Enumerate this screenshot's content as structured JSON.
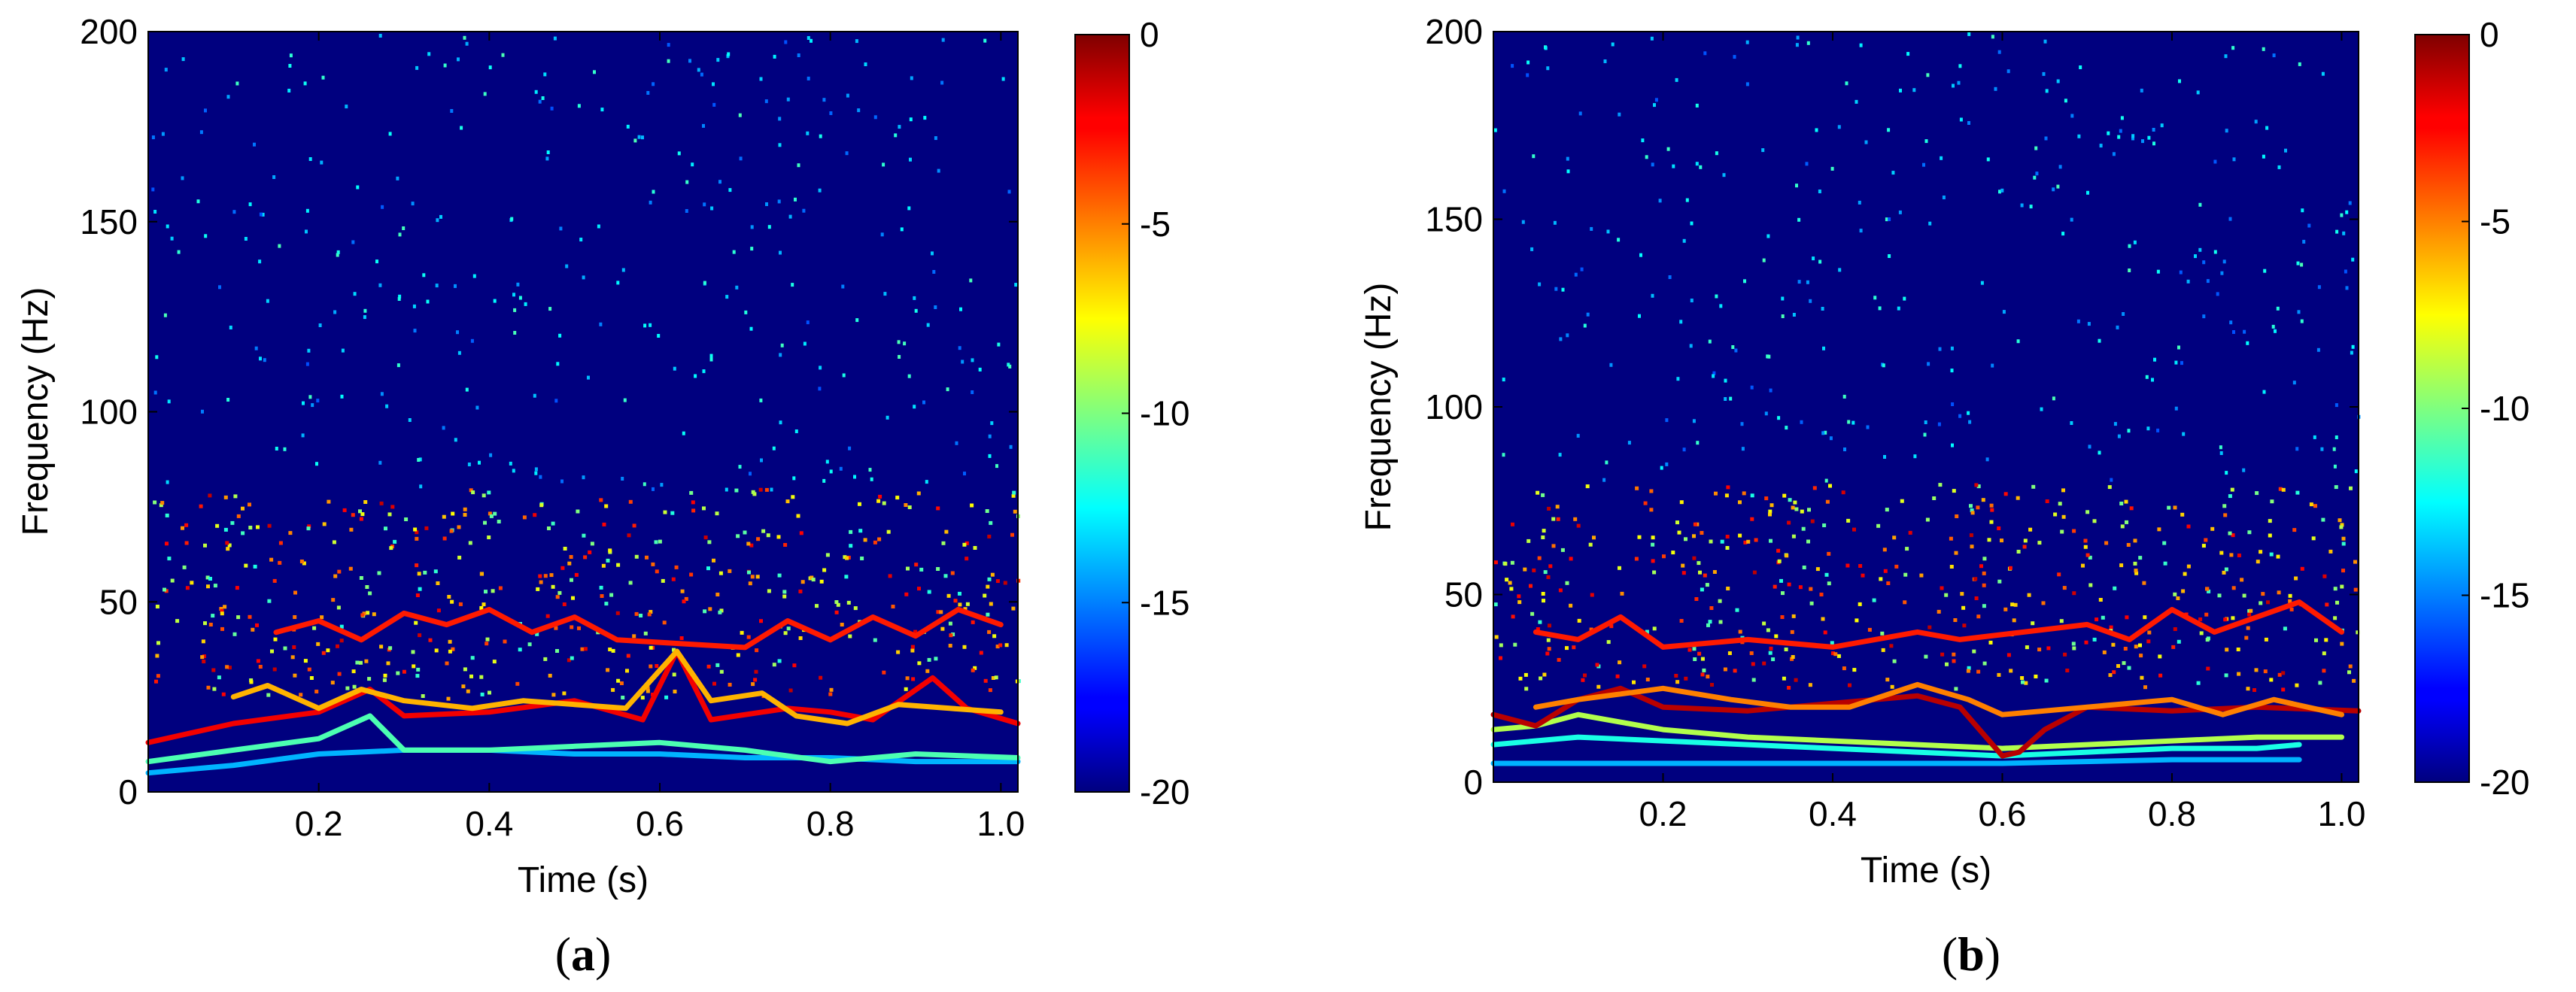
{
  "figure": {
    "panels": [
      {
        "id": "a",
        "caption_open": "(",
        "caption_letter": "a",
        "caption_close": ")"
      },
      {
        "id": "b",
        "caption_open": "(",
        "caption_letter": "b",
        "caption_close": ")"
      }
    ]
  },
  "chart_data": [
    {
      "type": "heatmap",
      "panel": "a",
      "title": "",
      "xlabel": "Time (s)",
      "ylabel": "Frequency (Hz)",
      "xlim": [
        0.0,
        1.02
      ],
      "ylim": [
        0,
        200
      ],
      "xticks": [
        0.2,
        0.4,
        0.6,
        0.8,
        1.0
      ],
      "xtick_labels": [
        "0.2",
        "0.4",
        "0.6",
        "0.8",
        "1.0"
      ],
      "yticks": [
        0,
        50,
        100,
        150,
        200
      ],
      "ytick_labels": [
        "0",
        "50",
        "100",
        "150",
        "200"
      ],
      "colorbar": {
        "range": [
          -20,
          0
        ],
        "ticks": [
          0,
          -5,
          -10,
          -15,
          -20
        ],
        "tick_labels": [
          "0",
          "-5",
          "-10",
          "-15",
          "-20"
        ],
        "colormap": "jet"
      },
      "background_value": -20,
      "ridges": [
        {
          "value": -14,
          "points": [
            [
              0.0,
              5
            ],
            [
              0.1,
              7
            ],
            [
              0.2,
              10
            ],
            [
              0.3,
              11
            ],
            [
              0.4,
              11
            ],
            [
              0.5,
              10
            ],
            [
              0.6,
              10
            ],
            [
              0.7,
              9
            ],
            [
              0.8,
              9
            ],
            [
              0.9,
              8
            ],
            [
              1.02,
              8
            ]
          ]
        },
        {
          "value": -11,
          "points": [
            [
              0.0,
              8
            ],
            [
              0.1,
              11
            ],
            [
              0.2,
              14
            ],
            [
              0.26,
              20
            ],
            [
              0.3,
              11
            ],
            [
              0.4,
              11
            ],
            [
              0.5,
              12
            ],
            [
              0.6,
              13
            ],
            [
              0.7,
              11
            ],
            [
              0.8,
              8
            ],
            [
              0.9,
              10
            ],
            [
              1.02,
              9
            ]
          ]
        },
        {
          "value": -2,
          "points": [
            [
              0.0,
              13
            ],
            [
              0.1,
              18
            ],
            [
              0.2,
              21
            ],
            [
              0.26,
              27
            ],
            [
              0.3,
              20
            ],
            [
              0.4,
              21
            ],
            [
              0.5,
              24
            ],
            [
              0.58,
              19
            ],
            [
              0.62,
              37
            ],
            [
              0.66,
              19
            ],
            [
              0.75,
              22
            ],
            [
              0.8,
              21
            ],
            [
              0.85,
              19
            ],
            [
              0.92,
              30
            ],
            [
              0.96,
              22
            ],
            [
              1.02,
              18
            ]
          ]
        },
        {
          "value": -6,
          "points": [
            [
              0.1,
              25
            ],
            [
              0.14,
              28
            ],
            [
              0.2,
              22
            ],
            [
              0.25,
              27
            ],
            [
              0.3,
              24
            ],
            [
              0.38,
              22
            ],
            [
              0.44,
              24
            ],
            [
              0.5,
              23
            ],
            [
              0.56,
              22
            ],
            [
              0.62,
              37
            ],
            [
              0.66,
              24
            ],
            [
              0.72,
              26
            ],
            [
              0.76,
              20
            ],
            [
              0.82,
              18
            ],
            [
              0.88,
              23
            ],
            [
              0.94,
              22
            ],
            [
              1.0,
              21
            ]
          ]
        },
        {
          "value": -3,
          "points": [
            [
              0.15,
              42
            ],
            [
              0.2,
              45
            ],
            [
              0.25,
              40
            ],
            [
              0.3,
              47
            ],
            [
              0.35,
              44
            ],
            [
              0.4,
              48
            ],
            [
              0.45,
              42
            ],
            [
              0.5,
              46
            ],
            [
              0.55,
              40
            ],
            [
              0.7,
              38
            ],
            [
              0.75,
              45
            ],
            [
              0.8,
              40
            ],
            [
              0.85,
              46
            ],
            [
              0.9,
              41
            ],
            [
              0.95,
              48
            ],
            [
              1.0,
              44
            ]
          ]
        }
      ],
      "scatter_density": {
        "main_band": [
          25,
          80
        ],
        "sparse_band": [
          80,
          200
        ]
      }
    },
    {
      "type": "heatmap",
      "panel": "b",
      "title": "",
      "xlabel": "Time (s)",
      "ylabel": "Frequency (Hz)",
      "xlim": [
        0.0,
        1.02
      ],
      "ylim": [
        0,
        200
      ],
      "xticks": [
        0.2,
        0.4,
        0.6,
        0.8,
        1.0
      ],
      "xtick_labels": [
        "0.2",
        "0.4",
        "0.6",
        "0.8",
        "1.0"
      ],
      "yticks": [
        0,
        50,
        100,
        150,
        200
      ],
      "ytick_labels": [
        "0",
        "50",
        "100",
        "150",
        "200"
      ],
      "colorbar": {
        "range": [
          -20,
          0
        ],
        "ticks": [
          0,
          -5,
          -10,
          -15,
          -20
        ],
        "tick_labels": [
          "0",
          "-5",
          "-10",
          "-15",
          "-20"
        ],
        "colormap": "jet"
      },
      "background_value": -20,
      "ridges": [
        {
          "value": -14,
          "points": [
            [
              0.0,
              5
            ],
            [
              0.2,
              5
            ],
            [
              0.4,
              5
            ],
            [
              0.6,
              5
            ],
            [
              0.8,
              6
            ],
            [
              0.95,
              6
            ]
          ]
        },
        {
          "value": -12,
          "points": [
            [
              0.0,
              10
            ],
            [
              0.1,
              12
            ],
            [
              0.2,
              11
            ],
            [
              0.3,
              10
            ],
            [
              0.4,
              9
            ],
            [
              0.5,
              8
            ],
            [
              0.6,
              7
            ],
            [
              0.7,
              8
            ],
            [
              0.8,
              9
            ],
            [
              0.9,
              9
            ],
            [
              0.95,
              10
            ]
          ]
        },
        {
          "value": -9,
          "points": [
            [
              0.0,
              14
            ],
            [
              0.05,
              15
            ],
            [
              0.1,
              18
            ],
            [
              0.15,
              16
            ],
            [
              0.2,
              14
            ],
            [
              0.3,
              12
            ],
            [
              0.4,
              11
            ],
            [
              0.5,
              10
            ],
            [
              0.6,
              9
            ],
            [
              0.7,
              10
            ],
            [
              0.8,
              11
            ],
            [
              0.9,
              12
            ],
            [
              1.0,
              12
            ]
          ]
        },
        {
          "value": -1,
          "points": [
            [
              0.0,
              18
            ],
            [
              0.05,
              15
            ],
            [
              0.1,
              22
            ],
            [
              0.15,
              25
            ],
            [
              0.2,
              20
            ],
            [
              0.3,
              19
            ],
            [
              0.4,
              21
            ],
            [
              0.5,
              23
            ],
            [
              0.55,
              20
            ],
            [
              0.6,
              7
            ],
            [
              0.62,
              8
            ],
            [
              0.65,
              14
            ],
            [
              0.7,
              20
            ],
            [
              0.8,
              19
            ],
            [
              0.9,
              20
            ],
            [
              1.02,
              19
            ]
          ]
        },
        {
          "value": -5,
          "points": [
            [
              0.05,
              20
            ],
            [
              0.1,
              22
            ],
            [
              0.2,
              25
            ],
            [
              0.28,
              22
            ],
            [
              0.35,
              20
            ],
            [
              0.42,
              20
            ],
            [
              0.5,
              26
            ],
            [
              0.56,
              22
            ],
            [
              0.6,
              18
            ],
            [
              0.7,
              20
            ],
            [
              0.8,
              22
            ],
            [
              0.86,
              18
            ],
            [
              0.92,
              22
            ],
            [
              1.0,
              18
            ]
          ]
        },
        {
          "value": -3,
          "points": [
            [
              0.05,
              40
            ],
            [
              0.1,
              38
            ],
            [
              0.15,
              44
            ],
            [
              0.2,
              36
            ],
            [
              0.3,
              38
            ],
            [
              0.4,
              36
            ],
            [
              0.5,
              40
            ],
            [
              0.55,
              38
            ],
            [
              0.7,
              42
            ],
            [
              0.75,
              38
            ],
            [
              0.8,
              46
            ],
            [
              0.85,
              40
            ],
            [
              0.9,
              44
            ],
            [
              0.95,
              48
            ],
            [
              1.0,
              40
            ]
          ]
        }
      ],
      "scatter_density": {
        "main_band": [
          25,
          80
        ],
        "sparse_band": [
          80,
          200
        ]
      }
    }
  ]
}
